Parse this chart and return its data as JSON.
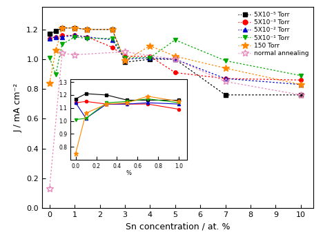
{
  "xlabel": "Sn concentration / at. %",
  "ylabel": "J / mA cm⁻²",
  "xlim": [
    -0.3,
    10.5
  ],
  "ylim": [
    0.0,
    1.35
  ],
  "yticks": [
    0.0,
    0.2,
    0.4,
    0.6,
    0.8,
    1.0,
    1.2
  ],
  "xticks": [
    0,
    1,
    2,
    3,
    4,
    5,
    6,
    7,
    8,
    9,
    10
  ],
  "series": [
    {
      "label": "5X10⁻⁵ Torr",
      "color": "#000000",
      "marker": "s",
      "linestyle": ":",
      "x": [
        0,
        0.25,
        0.5,
        1.0,
        1.5,
        2.5,
        3.0,
        4.0,
        5.0,
        7.0,
        10.0
      ],
      "y": [
        1.17,
        1.19,
        1.21,
        1.21,
        1.2,
        1.2,
        0.98,
        1.0,
        1.0,
        0.76,
        0.76
      ]
    },
    {
      "label": "5X10⁻³ Torr",
      "color": "#ff0000",
      "marker": "o",
      "linestyle": ":",
      "x": [
        0,
        0.25,
        0.5,
        1.0,
        1.5,
        2.5,
        3.0,
        4.0,
        5.0,
        7.0,
        10.0
      ],
      "y": [
        1.14,
        1.15,
        1.16,
        1.16,
        1.15,
        1.08,
        1.02,
        1.02,
        0.91,
        0.87,
        0.86
      ]
    },
    {
      "label": "5X10⁻² Torr",
      "color": "#0000cc",
      "marker": "^",
      "linestyle": ":",
      "x": [
        0,
        0.25,
        0.5,
        1.0,
        1.5,
        2.5,
        3.0,
        4.0,
        5.0,
        7.0,
        10.0
      ],
      "y": [
        1.14,
        1.15,
        1.15,
        1.16,
        1.15,
        1.13,
        1.0,
        1.01,
        1.0,
        0.87,
        0.83
      ]
    },
    {
      "label": "5X10⁻¹ Torr",
      "color": "#00aa00",
      "marker": "v",
      "linestyle": ":",
      "x": [
        0,
        0.25,
        0.5,
        1.0,
        1.5,
        2.5,
        3.0,
        4.0,
        5.0,
        7.0,
        10.0
      ],
      "y": [
        1.01,
        0.9,
        1.1,
        1.15,
        1.14,
        1.14,
        1.01,
        1.01,
        1.13,
        0.99,
        0.89
      ]
    },
    {
      "label": "150 Torr",
      "color": "#ff8800",
      "marker": "*",
      "linestyle": ":",
      "x": [
        0,
        0.25,
        0.5,
        1.0,
        1.5,
        2.5,
        3.0,
        4.0,
        5.0,
        7.0,
        10.0
      ],
      "y": [
        0.84,
        1.06,
        1.21,
        1.21,
        1.2,
        1.2,
        0.99,
        1.09,
        1.02,
        0.94,
        0.83
      ]
    },
    {
      "label": "normal annealing",
      "color": "#e888bb",
      "marker": "*",
      "marker_fill": "none",
      "linestyle": ":",
      "x": [
        0,
        0.5,
        1.0,
        3.0,
        5.0,
        7.0,
        10.0
      ],
      "y": [
        0.13,
        1.04,
        1.03,
        1.05,
        1.0,
        0.85,
        0.76
      ]
    }
  ],
  "inset": {
    "bounds": [
      0.105,
      0.24,
      0.43,
      0.4
    ],
    "xlim": [
      -0.05,
      1.08
    ],
    "ylim": [
      0.7,
      1.32
    ],
    "yticks": [
      0.8,
      0.9,
      1.0,
      1.1,
      1.2,
      1.3
    ],
    "xticks": [
      0.0,
      0.2,
      0.4,
      0.6,
      0.8,
      1.0
    ],
    "xlabel": "%",
    "series": [
      {
        "color": "#000000",
        "marker": "s",
        "x": [
          0,
          0.1,
          0.3,
          0.5,
          0.7,
          1.0
        ],
        "y": [
          1.17,
          1.21,
          1.2,
          1.16,
          1.16,
          1.16
        ]
      },
      {
        "color": "#ff0000",
        "marker": "o",
        "x": [
          0,
          0.1,
          0.3,
          0.5,
          0.7,
          1.0
        ],
        "y": [
          1.14,
          1.15,
          1.13,
          1.13,
          1.13,
          1.09
        ]
      },
      {
        "color": "#0000cc",
        "marker": "^",
        "x": [
          0,
          0.1,
          0.3,
          0.5,
          0.7,
          1.0
        ],
        "y": [
          1.14,
          1.02,
          1.13,
          1.13,
          1.14,
          1.13
        ]
      },
      {
        "color": "#00aa00",
        "marker": "v",
        "x": [
          0,
          0.1,
          0.3,
          0.5,
          0.7,
          1.0
        ],
        "y": [
          1.01,
          1.02,
          1.14,
          1.15,
          1.17,
          1.14
        ]
      },
      {
        "color": "#ff8800",
        "marker": "*",
        "x": [
          0,
          0.1,
          0.3,
          0.5,
          0.7,
          1.0
        ],
        "y": [
          0.75,
          1.06,
          1.13,
          1.14,
          1.19,
          1.15
        ]
      }
    ]
  }
}
